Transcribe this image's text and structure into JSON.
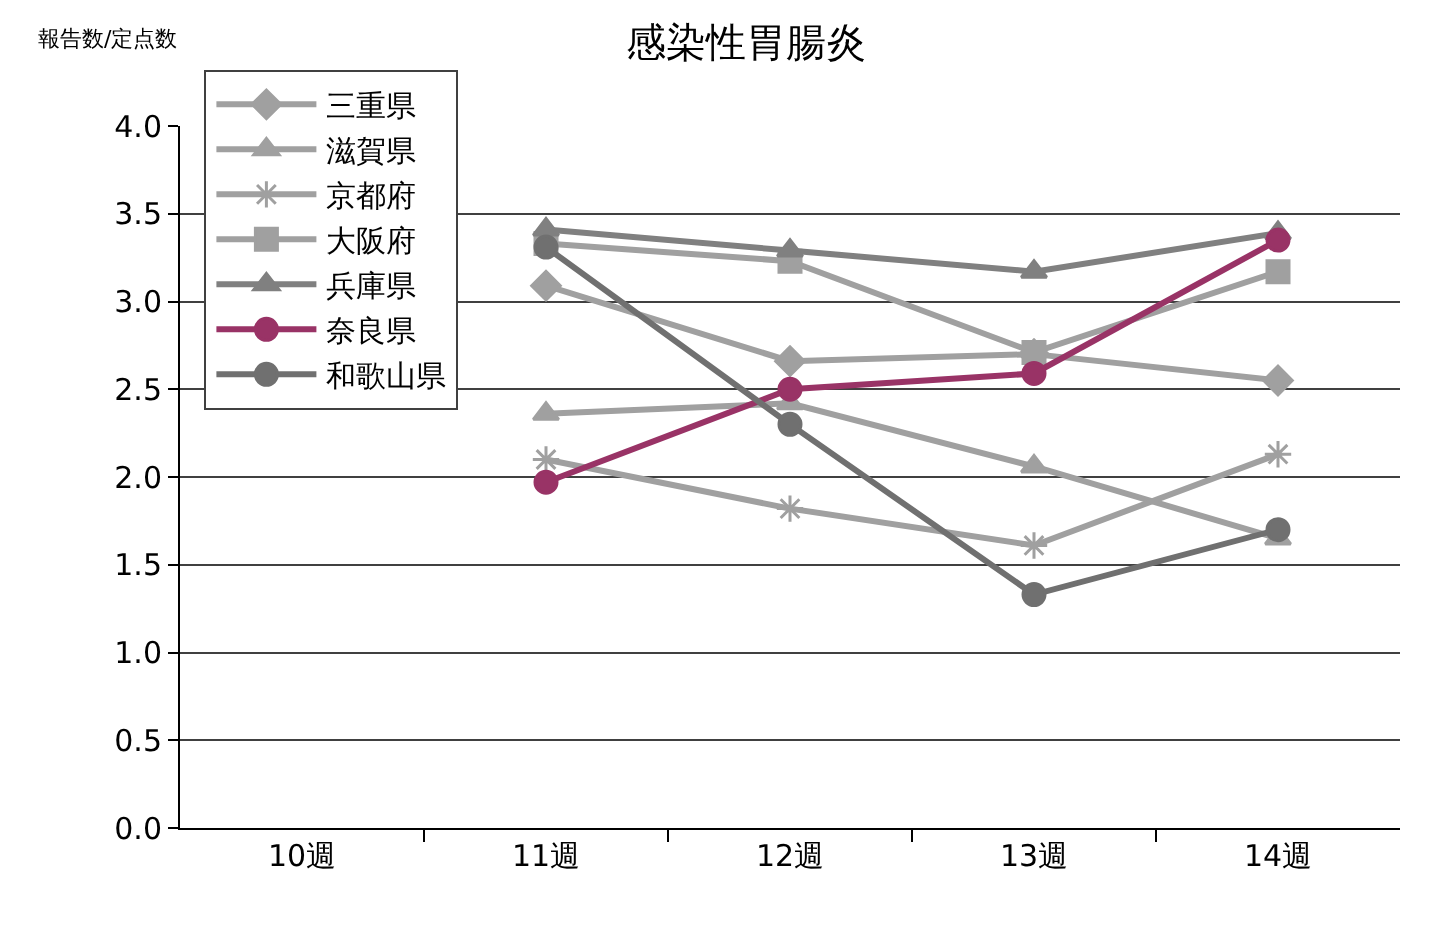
{
  "chart_data": {
    "type": "line",
    "title": "感染性胃腸炎",
    "ylabel": "報告数/定点数",
    "categories": [
      "10週",
      "11週",
      "12週",
      "13週",
      "14週"
    ],
    "series": [
      {
        "name": "三重県",
        "color": "#a0a0a0",
        "marker": "diamond",
        "values": [
          null,
          3.09,
          2.66,
          2.7,
          2.55
        ]
      },
      {
        "name": "滋賀県",
        "color": "#a0a0a0",
        "marker": "triangle",
        "values": [
          null,
          2.36,
          2.42,
          2.06,
          1.65
        ]
      },
      {
        "name": "京都府",
        "color": "#a0a0a0",
        "marker": "cross",
        "values": [
          null,
          2.1,
          1.82,
          1.61,
          2.13
        ]
      },
      {
        "name": "大阪府",
        "color": "#a0a0a0",
        "marker": "square",
        "values": [
          null,
          3.33,
          3.23,
          2.71,
          3.17
        ]
      },
      {
        "name": "兵庫県",
        "color": "#808080",
        "marker": "triangle",
        "values": [
          null,
          3.41,
          3.29,
          3.17,
          3.39
        ]
      },
      {
        "name": "奈良県",
        "color": "#993366",
        "marker": "circle",
        "values": [
          null,
          1.97,
          2.5,
          2.59,
          3.35
        ]
      },
      {
        "name": "和歌山県",
        "color": "#707070",
        "marker": "circle",
        "values": [
          null,
          3.31,
          2.3,
          1.33,
          1.7
        ]
      }
    ],
    "ylim": [
      0,
      4
    ],
    "yticks": [
      {
        "value": 0,
        "label": "0.0"
      },
      {
        "value": 0.5,
        "label": "0.5"
      },
      {
        "value": 1,
        "label": "1.0"
      },
      {
        "value": 1.5,
        "label": "1.5"
      },
      {
        "value": 2,
        "label": "2.0"
      },
      {
        "value": 2.5,
        "label": "2.5"
      },
      {
        "value": 3,
        "label": "3.0"
      },
      {
        "value": 3.5,
        "label": "3.5"
      },
      {
        "value": 4,
        "label": "4.0"
      }
    ],
    "grid": "y",
    "legend": "top left",
    "line_style": "solid"
  }
}
